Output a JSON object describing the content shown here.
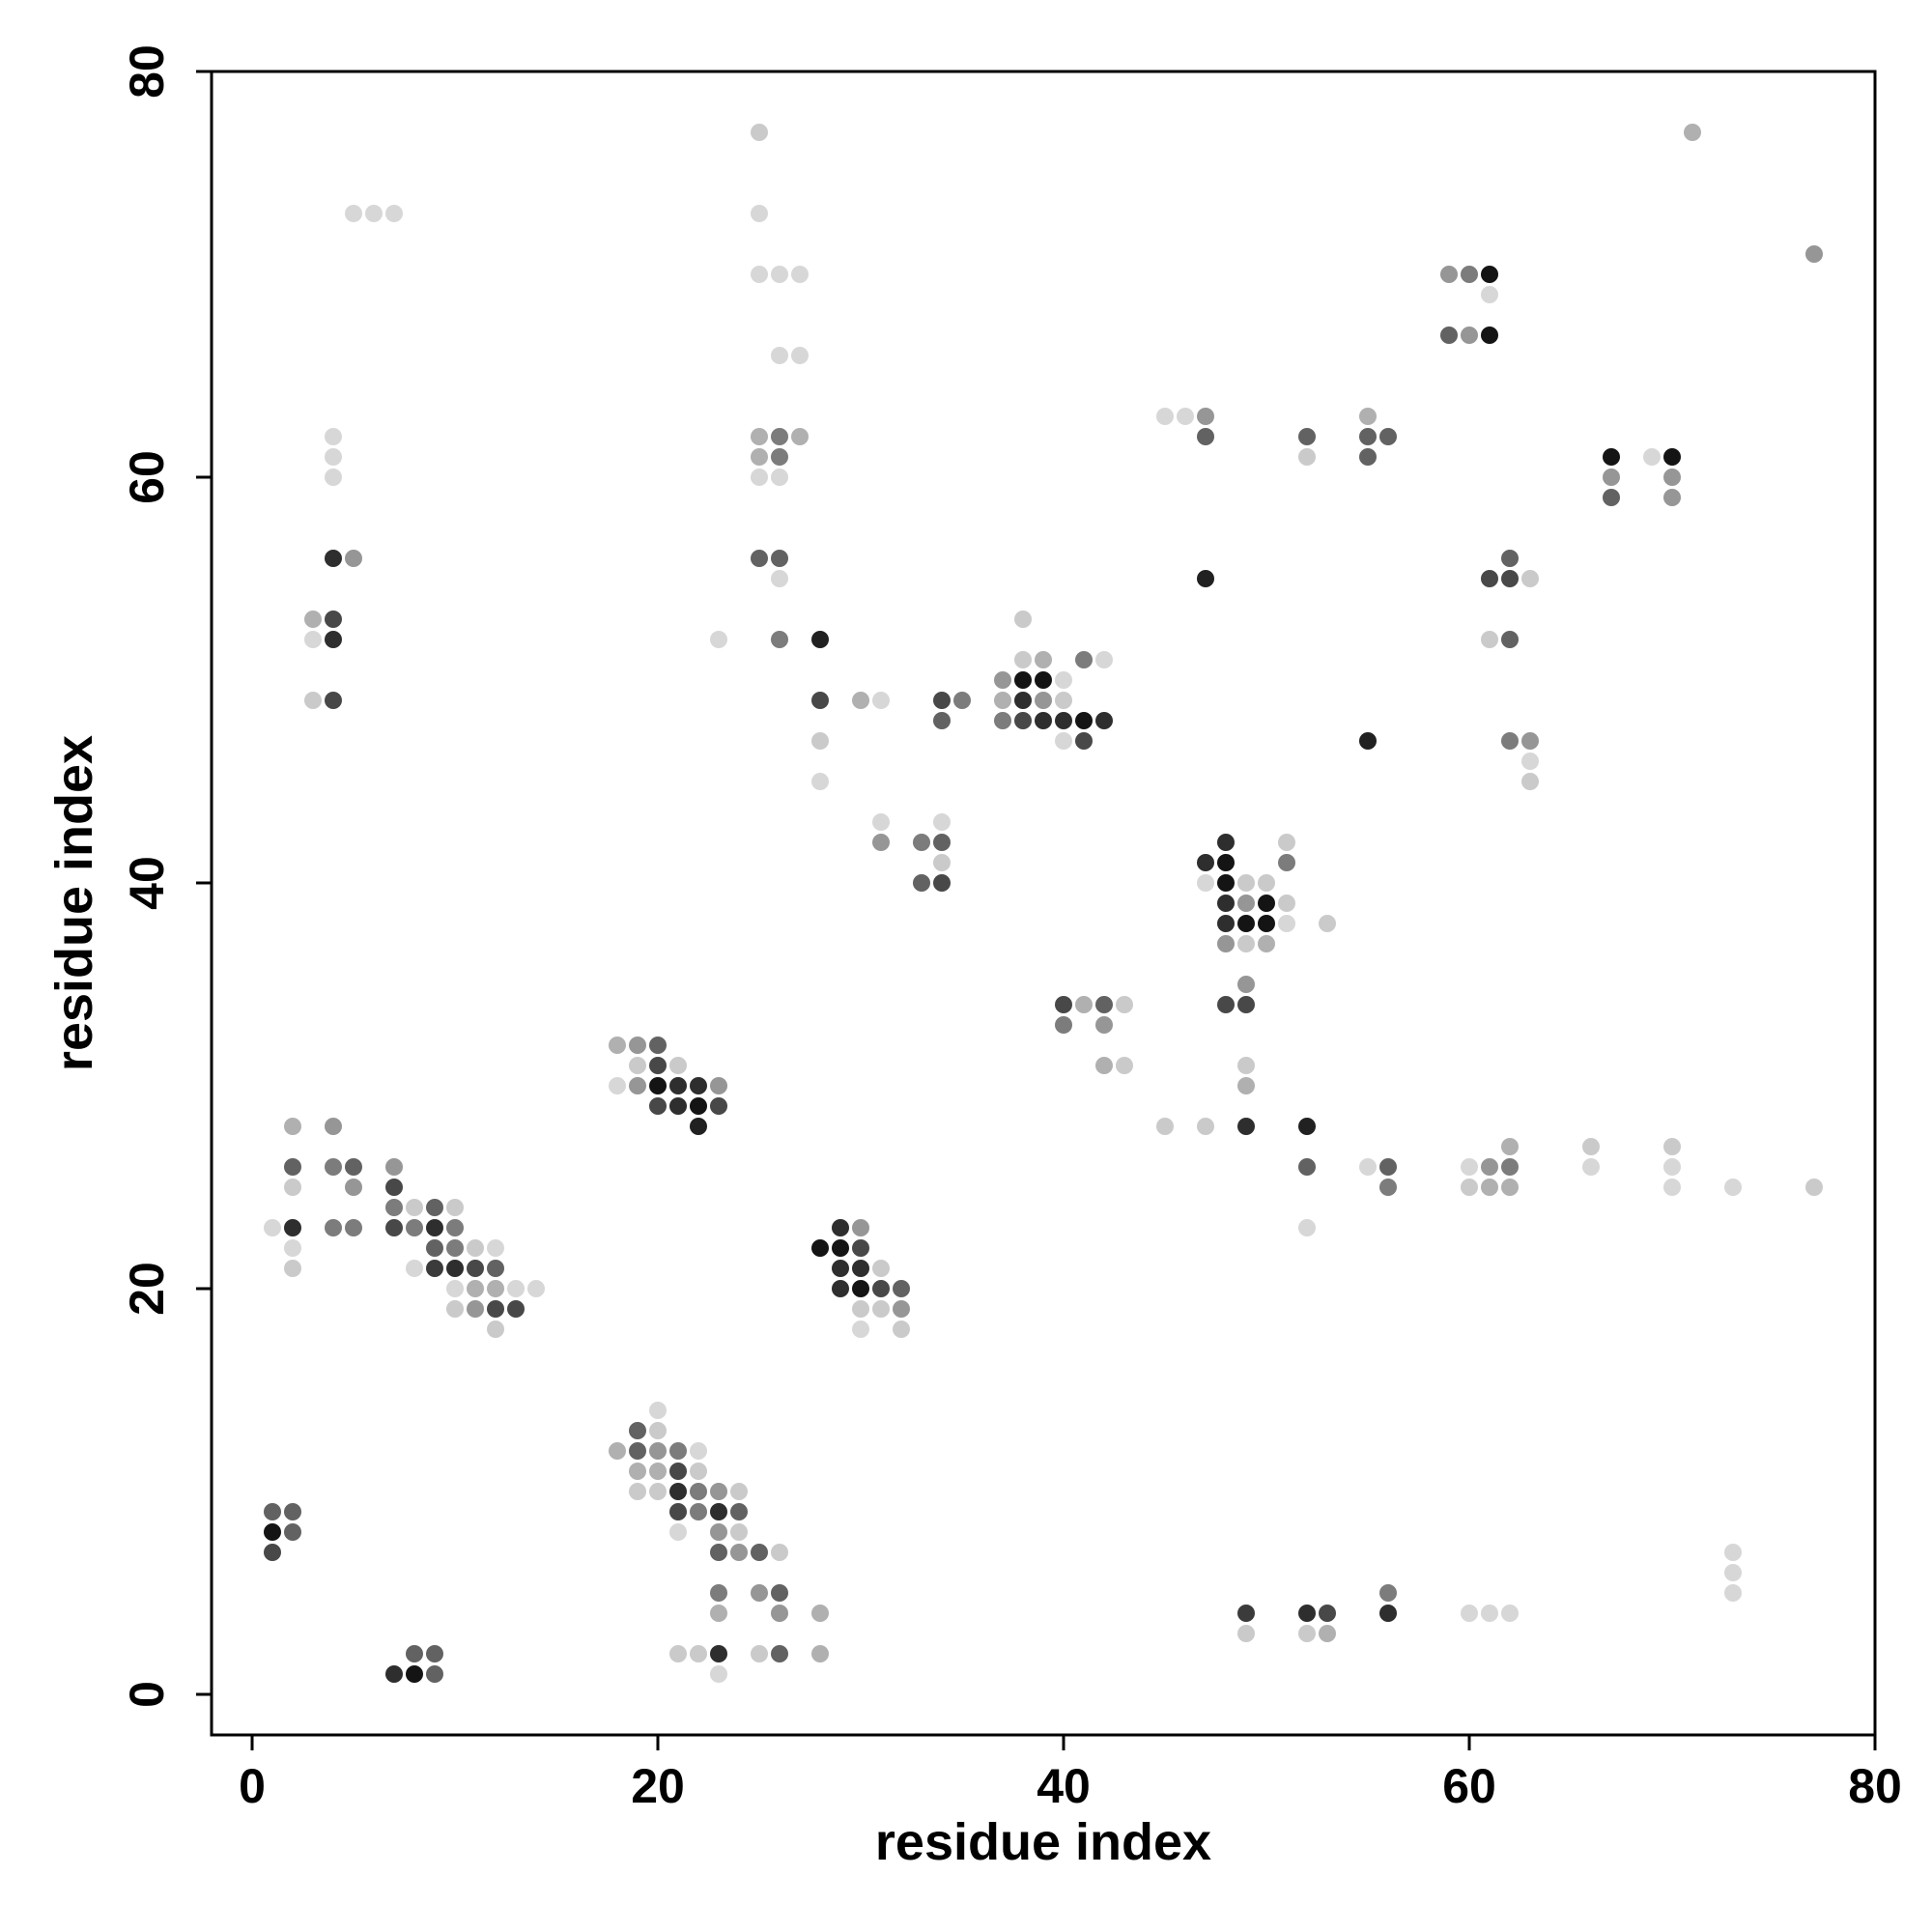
{
  "chart_data": {
    "type": "scatter",
    "title": "",
    "xlabel": "residue index",
    "ylabel": "residue index",
    "xlim": [
      -2,
      80
    ],
    "ylim": [
      -2,
      80
    ],
    "xticks": [
      "0",
      "20",
      "40",
      "60",
      "80"
    ],
    "yticks": [
      "0",
      "20",
      "40",
      "60",
      "80"
    ],
    "grid": false,
    "legend": "none",
    "color_scale": "greyscale by contact strength: 0.25 = lightest grey, 1.0 = black",
    "points": [
      [
        1,
        8,
        1.0
      ],
      [
        1,
        9,
        0.7
      ],
      [
        1,
        7,
        0.8
      ],
      [
        2,
        9,
        0.7
      ],
      [
        2,
        8,
        0.7
      ],
      [
        7,
        1,
        0.9
      ],
      [
        8,
        1,
        1.0
      ],
      [
        8,
        2,
        0.7
      ],
      [
        9,
        2,
        0.7
      ],
      [
        9,
        1,
        0.7
      ],
      [
        5,
        73,
        0.25
      ],
      [
        6,
        73,
        0.25
      ],
      [
        7,
        73,
        0.25
      ],
      [
        4,
        62,
        0.25
      ],
      [
        4,
        61,
        0.25
      ],
      [
        4,
        60,
        0.25
      ],
      [
        4,
        56,
        0.9
      ],
      [
        5,
        56,
        0.5
      ],
      [
        3,
        53,
        0.4
      ],
      [
        4,
        53,
        0.8
      ],
      [
        3,
        52,
        0.25
      ],
      [
        4,
        52,
        0.9
      ],
      [
        3,
        49,
        0.3
      ],
      [
        4,
        49,
        0.8
      ],
      [
        1,
        23,
        0.25
      ],
      [
        2,
        28,
        0.4
      ],
      [
        2,
        26,
        0.7
      ],
      [
        2,
        25,
        0.3
      ],
      [
        2,
        23,
        0.9
      ],
      [
        2,
        22,
        0.25
      ],
      [
        2,
        21,
        0.3
      ],
      [
        4,
        28,
        0.5
      ],
      [
        4,
        26,
        0.6
      ],
      [
        5,
        26,
        0.7
      ],
      [
        5,
        25,
        0.5
      ],
      [
        4,
        23,
        0.6
      ],
      [
        5,
        23,
        0.6
      ],
      [
        7,
        26,
        0.5
      ],
      [
        7,
        25,
        0.8
      ],
      [
        7,
        24,
        0.6
      ],
      [
        7,
        23,
        0.8
      ],
      [
        8,
        24,
        0.3
      ],
      [
        8,
        23,
        0.6
      ],
      [
        9,
        24,
        0.7
      ],
      [
        9,
        23,
        0.9
      ],
      [
        9,
        22,
        0.7
      ],
      [
        10,
        24,
        0.3
      ],
      [
        10,
        23,
        0.6
      ],
      [
        8,
        21,
        0.25
      ],
      [
        9,
        21,
        0.85
      ],
      [
        10,
        22,
        0.6
      ],
      [
        10,
        21,
        0.9
      ],
      [
        11,
        22,
        0.3
      ],
      [
        11,
        21,
        0.8
      ],
      [
        12,
        22,
        0.25
      ],
      [
        12,
        21,
        0.7
      ],
      [
        10,
        20,
        0.25
      ],
      [
        11,
        20,
        0.4
      ],
      [
        12,
        20,
        0.4
      ],
      [
        13,
        20,
        0.25
      ],
      [
        14,
        20,
        0.25
      ],
      [
        10,
        19,
        0.3
      ],
      [
        11,
        19,
        0.5
      ],
      [
        12,
        19,
        0.8
      ],
      [
        13,
        19,
        0.8
      ],
      [
        12,
        18,
        0.3
      ],
      [
        18,
        32,
        0.4
      ],
      [
        19,
        32,
        0.5
      ],
      [
        20,
        32,
        0.7
      ],
      [
        19,
        31,
        0.3
      ],
      [
        20,
        31,
        0.8
      ],
      [
        21,
        31,
        0.3
      ],
      [
        18,
        30,
        0.25
      ],
      [
        19,
        30,
        0.5
      ],
      [
        20,
        30,
        1.0
      ],
      [
        21,
        30,
        0.9
      ],
      [
        22,
        30,
        0.9
      ],
      [
        23,
        30,
        0.5
      ],
      [
        20,
        29,
        0.8
      ],
      [
        21,
        29,
        0.9
      ],
      [
        22,
        29,
        1.0
      ],
      [
        23,
        29,
        0.8
      ],
      [
        22,
        28,
        0.95
      ],
      [
        28,
        22,
        1.0
      ],
      [
        29,
        23,
        0.9
      ],
      [
        30,
        23,
        0.5
      ],
      [
        29,
        22,
        1.0
      ],
      [
        30,
        22,
        0.8
      ],
      [
        29,
        21,
        0.9
      ],
      [
        30,
        21,
        0.9
      ],
      [
        31,
        21,
        0.3
      ],
      [
        29,
        20,
        0.9
      ],
      [
        30,
        20,
        1.0
      ],
      [
        31,
        20,
        0.8
      ],
      [
        32,
        20,
        0.7
      ],
      [
        30,
        19,
        0.3
      ],
      [
        31,
        19,
        0.3
      ],
      [
        32,
        19,
        0.5
      ],
      [
        30,
        18,
        0.25
      ],
      [
        32,
        18,
        0.3
      ],
      [
        20,
        14,
        0.25
      ],
      [
        20,
        13,
        0.3
      ],
      [
        18,
        12,
        0.4
      ],
      [
        19,
        13,
        0.7
      ],
      [
        19,
        12,
        0.7
      ],
      [
        20,
        12,
        0.5
      ],
      [
        21,
        12,
        0.6
      ],
      [
        22,
        12,
        0.25
      ],
      [
        19,
        11,
        0.4
      ],
      [
        20,
        11,
        0.4
      ],
      [
        21,
        11,
        0.8
      ],
      [
        22,
        11,
        0.3
      ],
      [
        19,
        10,
        0.3
      ],
      [
        20,
        10,
        0.3
      ],
      [
        21,
        10,
        0.9
      ],
      [
        22,
        10,
        0.6
      ],
      [
        23,
        10,
        0.5
      ],
      [
        24,
        10,
        0.3
      ],
      [
        21,
        9,
        0.8
      ],
      [
        22,
        9,
        0.6
      ],
      [
        23,
        9,
        0.9
      ],
      [
        24,
        9,
        0.7
      ],
      [
        21,
        8,
        0.25
      ],
      [
        23,
        8,
        0.5
      ],
      [
        24,
        8,
        0.3
      ],
      [
        23,
        7,
        0.7
      ],
      [
        24,
        7,
        0.5
      ],
      [
        25,
        7,
        0.7
      ],
      [
        26,
        7,
        0.3
      ],
      [
        23,
        5,
        0.6
      ],
      [
        25,
        5,
        0.5
      ],
      [
        26,
        5,
        0.7
      ],
      [
        23,
        4,
        0.4
      ],
      [
        26,
        4,
        0.5
      ],
      [
        28,
        4,
        0.4
      ],
      [
        21,
        2,
        0.3
      ],
      [
        22,
        2,
        0.3
      ],
      [
        23,
        2,
        0.9
      ],
      [
        25,
        2,
        0.3
      ],
      [
        26,
        2,
        0.7
      ],
      [
        28,
        2,
        0.4
      ],
      [
        23,
        1,
        0.25
      ],
      [
        25,
        77,
        0.3
      ],
      [
        25,
        73,
        0.25
      ],
      [
        25,
        70,
        0.25
      ],
      [
        26,
        70,
        0.25
      ],
      [
        27,
        70,
        0.25
      ],
      [
        26,
        66,
        0.25
      ],
      [
        27,
        66,
        0.25
      ],
      [
        25,
        62,
        0.4
      ],
      [
        26,
        62,
        0.6
      ],
      [
        27,
        62,
        0.4
      ],
      [
        25,
        61,
        0.4
      ],
      [
        26,
        61,
        0.6
      ],
      [
        25,
        60,
        0.25
      ],
      [
        26,
        60,
        0.25
      ],
      [
        25,
        56,
        0.7
      ],
      [
        26,
        56,
        0.7
      ],
      [
        26,
        55,
        0.25
      ],
      [
        26,
        52,
        0.6
      ],
      [
        23,
        52,
        0.25
      ],
      [
        28,
        52,
        0.95
      ],
      [
        28,
        49,
        0.8
      ],
      [
        28,
        47,
        0.3
      ],
      [
        28,
        45,
        0.25
      ],
      [
        30,
        49,
        0.4
      ],
      [
        31,
        49,
        0.25
      ],
      [
        31,
        43,
        0.25
      ],
      [
        31,
        42,
        0.5
      ],
      [
        33,
        42,
        0.6
      ],
      [
        34,
        43,
        0.25
      ],
      [
        34,
        42,
        0.7
      ],
      [
        34,
        41,
        0.3
      ],
      [
        33,
        40,
        0.7
      ],
      [
        34,
        40,
        0.8
      ],
      [
        34,
        49,
        0.8
      ],
      [
        35,
        49,
        0.6
      ],
      [
        34,
        48,
        0.7
      ],
      [
        37,
        50,
        0.5
      ],
      [
        38,
        53,
        0.3
      ],
      [
        38,
        51,
        0.3
      ],
      [
        39,
        51,
        0.4
      ],
      [
        38,
        50,
        1.0
      ],
      [
        39,
        50,
        1.0
      ],
      [
        40,
        50,
        0.25
      ],
      [
        37,
        49,
        0.4
      ],
      [
        38,
        49,
        0.9
      ],
      [
        39,
        49,
        0.5
      ],
      [
        40,
        49,
        0.3
      ],
      [
        37,
        48,
        0.6
      ],
      [
        38,
        48,
        0.8
      ],
      [
        39,
        48,
        0.9
      ],
      [
        40,
        48,
        0.9
      ],
      [
        41,
        48,
        1.0
      ],
      [
        42,
        48,
        0.9
      ],
      [
        40,
        47,
        0.25
      ],
      [
        41,
        47,
        0.8
      ],
      [
        41,
        51,
        0.6
      ],
      [
        42,
        51,
        0.25
      ],
      [
        40,
        34,
        0.8
      ],
      [
        41,
        34,
        0.4
      ],
      [
        42,
        34,
        0.7
      ],
      [
        43,
        34,
        0.3
      ],
      [
        40,
        33,
        0.6
      ],
      [
        42,
        33,
        0.5
      ],
      [
        42,
        31,
        0.4
      ],
      [
        43,
        31,
        0.3
      ],
      [
        45,
        63,
        0.25
      ],
      [
        46,
        63,
        0.25
      ],
      [
        47,
        63,
        0.5
      ],
      [
        47,
        62,
        0.7
      ],
      [
        47,
        55,
        0.95
      ],
      [
        47,
        41,
        0.9
      ],
      [
        48,
        42,
        0.9
      ],
      [
        48,
        41,
        1.0
      ],
      [
        51,
        42,
        0.3
      ],
      [
        51,
        41,
        0.6
      ],
      [
        47,
        40,
        0.25
      ],
      [
        48,
        40,
        1.0
      ],
      [
        49,
        40,
        0.3
      ],
      [
        50,
        40,
        0.3
      ],
      [
        48,
        39,
        0.9
      ],
      [
        49,
        39,
        0.5
      ],
      [
        50,
        39,
        1.0
      ],
      [
        51,
        39,
        0.3
      ],
      [
        48,
        38,
        0.9
      ],
      [
        49,
        38,
        1.0
      ],
      [
        50,
        38,
        1.0
      ],
      [
        51,
        38,
        0.25
      ],
      [
        53,
        38,
        0.3
      ],
      [
        48,
        37,
        0.5
      ],
      [
        49,
        37,
        0.3
      ],
      [
        50,
        37,
        0.4
      ],
      [
        49,
        35,
        0.5
      ],
      [
        48,
        34,
        0.8
      ],
      [
        49,
        34,
        0.8
      ],
      [
        49,
        31,
        0.3
      ],
      [
        49,
        30,
        0.4
      ],
      [
        45,
        28,
        0.3
      ],
      [
        47,
        28,
        0.3
      ],
      [
        49,
        28,
        0.9
      ],
      [
        52,
        28,
        0.95
      ],
      [
        52,
        26,
        0.7
      ],
      [
        52,
        23,
        0.25
      ],
      [
        55,
        26,
        0.25
      ],
      [
        56,
        26,
        0.7
      ],
      [
        56,
        25,
        0.6
      ],
      [
        49,
        4,
        0.85
      ],
      [
        49,
        3,
        0.3
      ],
      [
        52,
        4,
        0.9
      ],
      [
        53,
        4,
        0.8
      ],
      [
        52,
        3,
        0.3
      ],
      [
        53,
        3,
        0.4
      ],
      [
        56,
        5,
        0.6
      ],
      [
        56,
        4,
        0.9
      ],
      [
        60,
        4,
        0.25
      ],
      [
        61,
        4,
        0.25
      ],
      [
        62,
        4,
        0.25
      ],
      [
        52,
        62,
        0.7
      ],
      [
        52,
        61,
        0.3
      ],
      [
        55,
        63,
        0.4
      ],
      [
        55,
        62,
        0.7
      ],
      [
        56,
        62,
        0.7
      ],
      [
        55,
        61,
        0.7
      ],
      [
        55,
        47,
        0.95
      ],
      [
        59,
        70,
        0.5
      ],
      [
        60,
        70,
        0.6
      ],
      [
        61,
        70,
        1.0
      ],
      [
        61,
        69,
        0.25
      ],
      [
        59,
        67,
        0.7
      ],
      [
        60,
        67,
        0.5
      ],
      [
        61,
        67,
        1.0
      ],
      [
        62,
        56,
        0.7
      ],
      [
        61,
        55,
        0.8
      ],
      [
        62,
        55,
        0.8
      ],
      [
        63,
        55,
        0.3
      ],
      [
        61,
        52,
        0.3
      ],
      [
        62,
        52,
        0.7
      ],
      [
        62,
        47,
        0.6
      ],
      [
        63,
        47,
        0.5
      ],
      [
        63,
        46,
        0.25
      ],
      [
        63,
        45,
        0.3
      ],
      [
        60,
        26,
        0.25
      ],
      [
        61,
        26,
        0.5
      ],
      [
        62,
        26,
        0.6
      ],
      [
        62,
        27,
        0.4
      ],
      [
        60,
        25,
        0.3
      ],
      [
        61,
        25,
        0.4
      ],
      [
        62,
        25,
        0.4
      ],
      [
        66,
        27,
        0.3
      ],
      [
        66,
        26,
        0.25
      ],
      [
        70,
        27,
        0.3
      ],
      [
        70,
        26,
        0.25
      ],
      [
        70,
        25,
        0.25
      ],
      [
        73,
        25,
        0.25
      ],
      [
        77,
        25,
        0.3
      ],
      [
        67,
        61,
        1.0
      ],
      [
        67,
        60,
        0.5
      ],
      [
        67,
        59,
        0.7
      ],
      [
        69,
        61,
        0.25
      ],
      [
        70,
        61,
        1.0
      ],
      [
        70,
        60,
        0.5
      ],
      [
        70,
        59,
        0.5
      ],
      [
        71,
        77,
        0.4
      ],
      [
        77,
        71,
        0.5
      ],
      [
        73,
        7,
        0.25
      ],
      [
        73,
        6,
        0.25
      ],
      [
        73,
        5,
        0.25
      ]
    ]
  }
}
